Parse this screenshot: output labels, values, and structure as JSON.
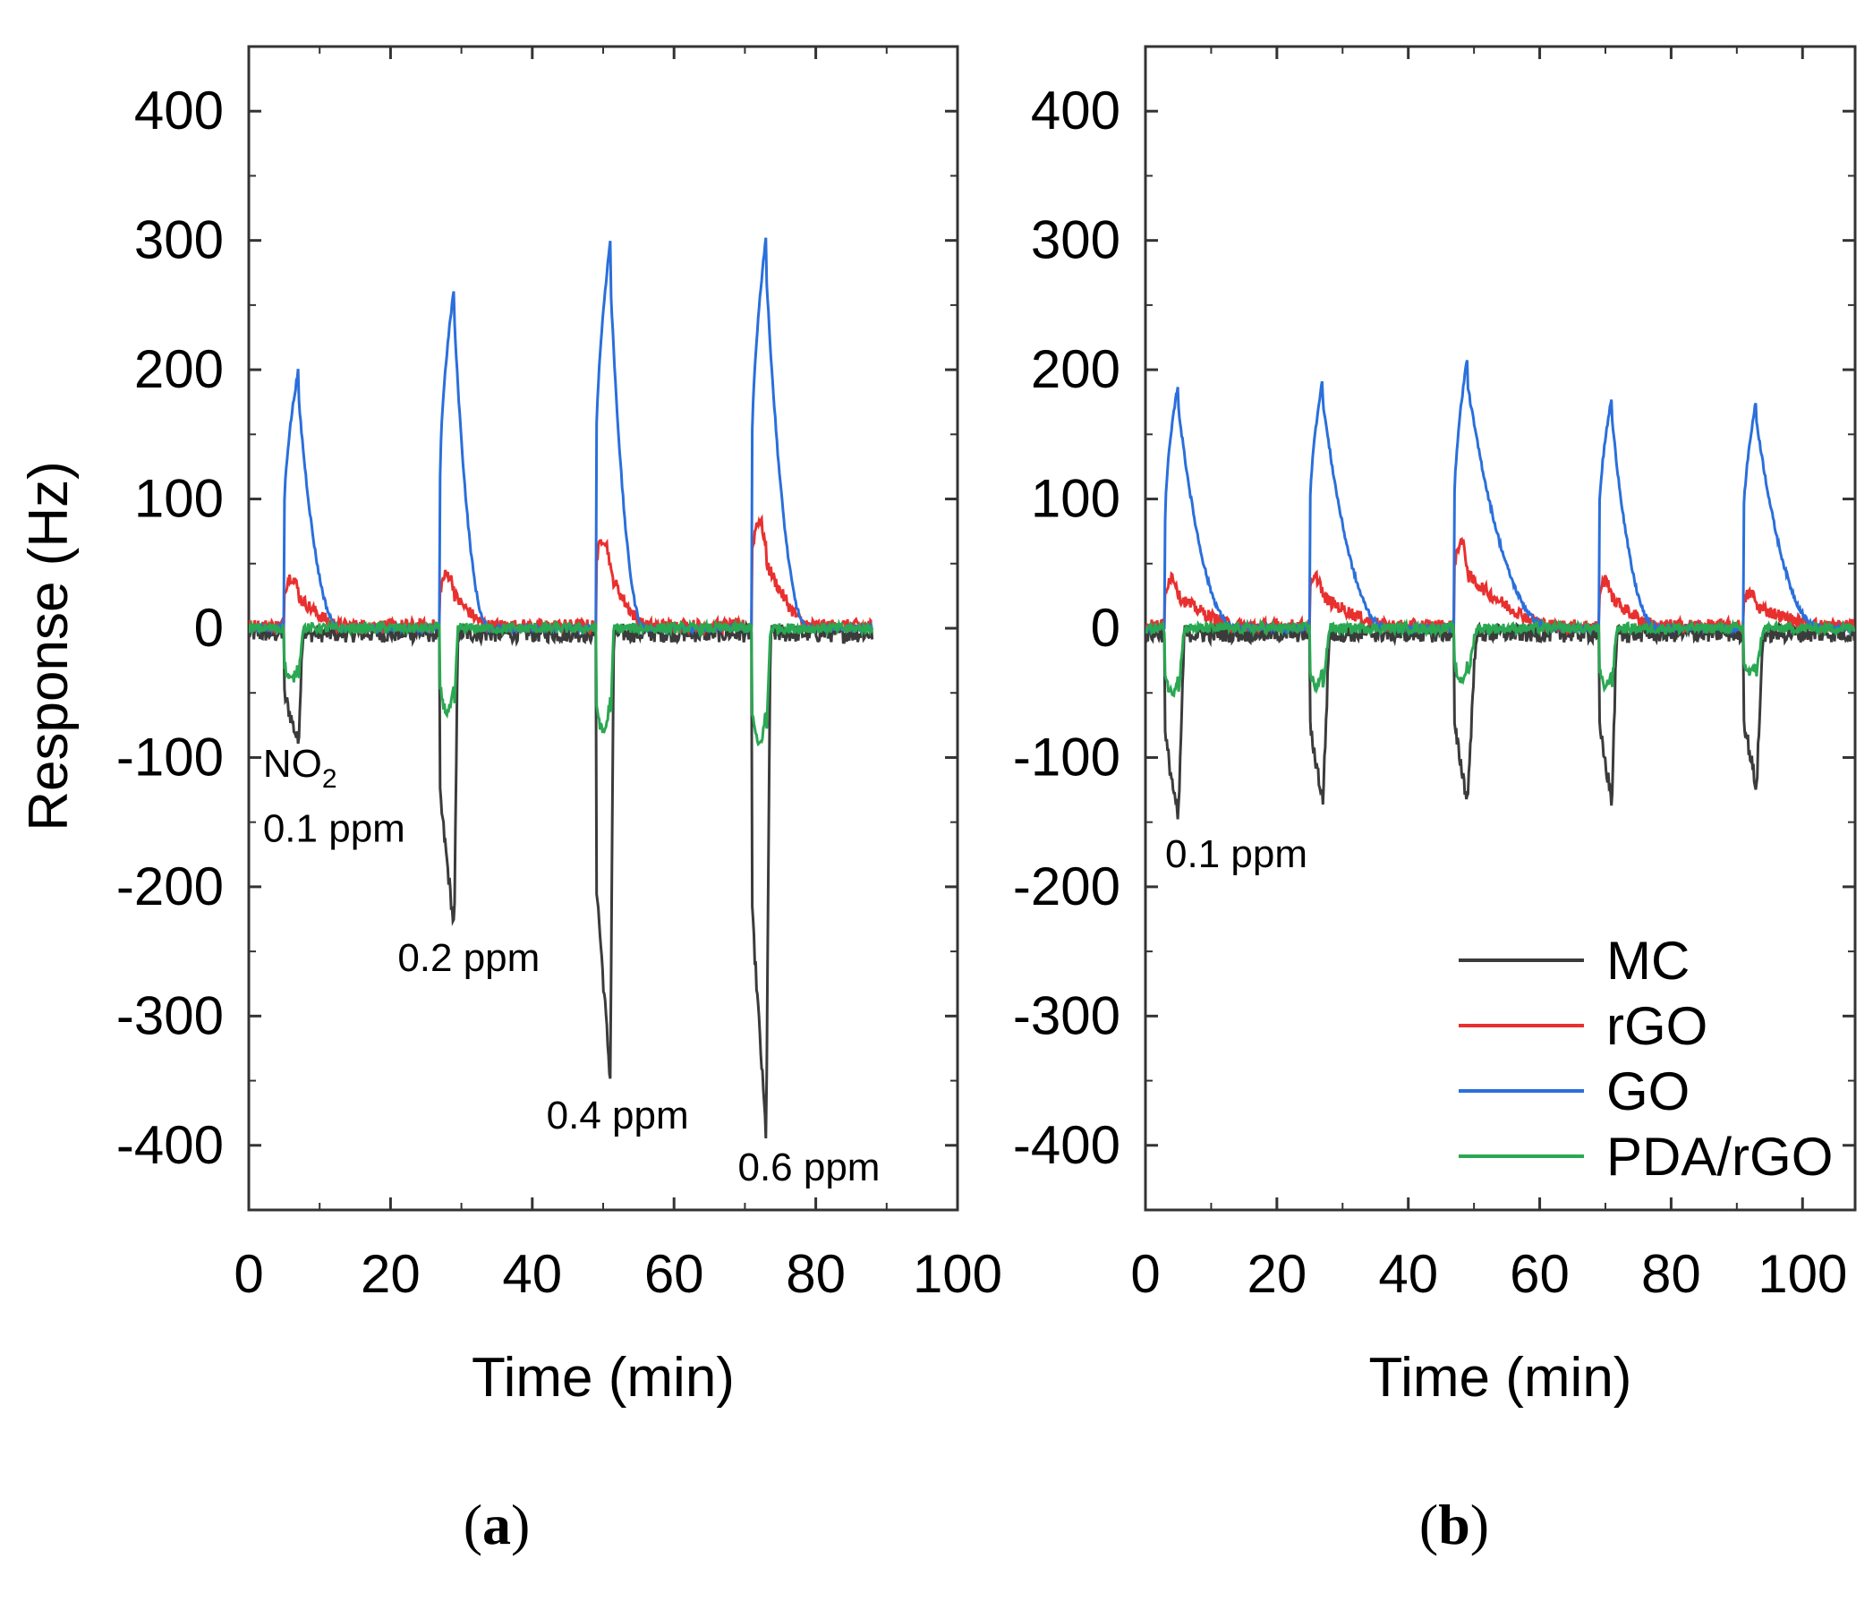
{
  "chart_data": [
    {
      "type": "line",
      "panel": "(a)",
      "panel_letter": "a",
      "xlabel": "Time (min)",
      "ylabel": "Response (Hz)",
      "xlim": [
        0,
        100
      ],
      "ylim": [
        -450,
        450
      ],
      "xticks": [
        0,
        20,
        40,
        60,
        80,
        100
      ],
      "yticks": [
        400,
        300,
        200,
        100,
        0,
        -100,
        -200,
        -300,
        -400
      ],
      "grid": false,
      "annotations": [
        {
          "text": "NO",
          "subscript": "2",
          "x": 2,
          "y": -115
        },
        {
          "text": "0.1 ppm",
          "x": 2,
          "y": -165
        },
        {
          "text": "0.2 ppm",
          "x": 21,
          "y": -265
        },
        {
          "text": "0.4 ppm",
          "x": 42,
          "y": -387
        },
        {
          "text": "0.6 ppm",
          "x": 69,
          "y": -427
        }
      ],
      "exposures": [
        {
          "start": 5,
          "end": 7,
          "recover": 13,
          "MC": -85,
          "rGO": 38,
          "GO": 200,
          "PDA/rGO": -40
        },
        {
          "start": 27,
          "end": 29,
          "recover": 34,
          "MC": -230,
          "rGO": 40,
          "GO": 265,
          "PDA/rGO": -65
        },
        {
          "start": 49,
          "end": 51,
          "recover": 56,
          "MC": -345,
          "rGO": 68,
          "GO": 300,
          "PDA/rGO": -80
        },
        {
          "start": 71,
          "end": 73,
          "recover": 79,
          "MC": -390,
          "rGO": 82,
          "GO": 305,
          "PDA/rGO": -90
        }
      ],
      "x_end": 88,
      "series": [
        {
          "name": "MC",
          "color": "#3b3b3b"
        },
        {
          "name": "rGO",
          "color": "#e8302f"
        },
        {
          "name": "GO",
          "color": "#2a6fdb"
        },
        {
          "name": "PDA/rGO",
          "color": "#2aa852"
        }
      ]
    },
    {
      "type": "line",
      "panel": "(b)",
      "panel_letter": "b",
      "xlabel": "Time (min)",
      "ylabel": "",
      "xlim": [
        0,
        108
      ],
      "ylim": [
        -450,
        450
      ],
      "xticks": [
        0,
        20,
        40,
        60,
        80,
        100
      ],
      "yticks": [
        400,
        300,
        200,
        100,
        0,
        -100,
        -200,
        -300,
        -400
      ],
      "grid": false,
      "annotations": [
        {
          "text": "0.1 ppm",
          "x": 3,
          "y": -185
        }
      ],
      "exposures": [
        {
          "start": 3,
          "end": 5,
          "recover": 14,
          "MC": -145,
          "rGO": 38,
          "GO": 190,
          "PDA/rGO": -50
        },
        {
          "start": 25,
          "end": 27,
          "recover": 37,
          "MC": -130,
          "rGO": 37,
          "GO": 195,
          "PDA/rGO": -45
        },
        {
          "start": 47,
          "end": 49,
          "recover": 62,
          "MC": -130,
          "rGO": 65,
          "GO": 210,
          "PDA/rGO": -40
        },
        {
          "start": 69,
          "end": 71,
          "recover": 78,
          "MC": -130,
          "rGO": 35,
          "GO": 180,
          "PDA/rGO": -45
        },
        {
          "start": 91,
          "end": 93,
          "recover": 103,
          "MC": -120,
          "rGO": 25,
          "GO": 178,
          "PDA/rGO": -35
        }
      ],
      "x_end": 108,
      "legend": {
        "position": "bottom-right",
        "entries": [
          "MC",
          "rGO",
          "GO",
          "PDA/rGO"
        ]
      },
      "series": [
        {
          "name": "MC",
          "color": "#3b3b3b"
        },
        {
          "name": "rGO",
          "color": "#e8302f"
        },
        {
          "name": "GO",
          "color": "#2a6fdb"
        },
        {
          "name": "PDA/rGO",
          "color": "#2aa852"
        }
      ]
    }
  ]
}
